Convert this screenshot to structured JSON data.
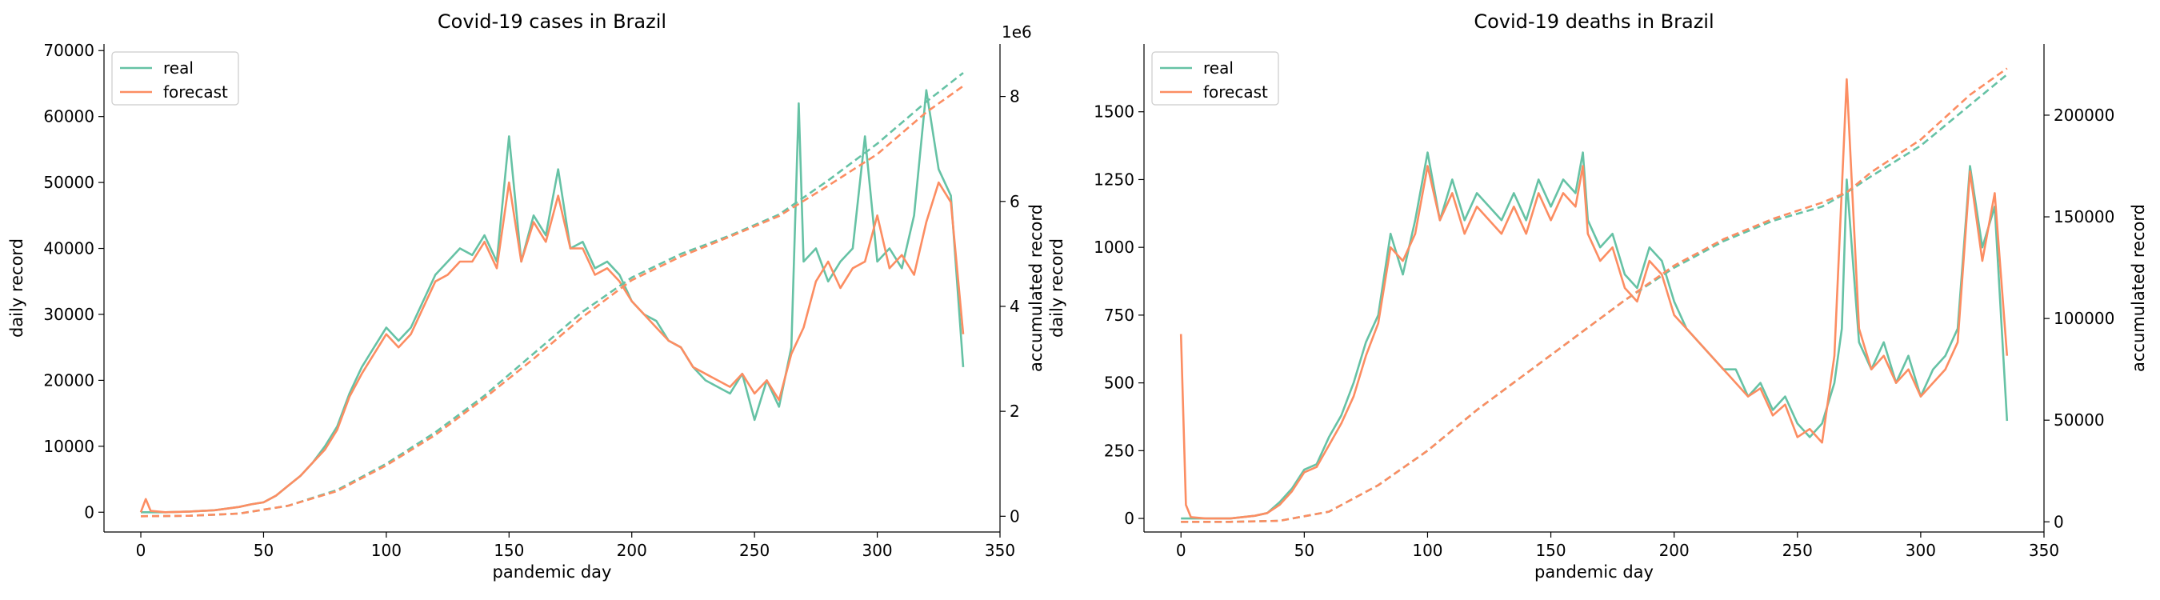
{
  "chart_data": [
    {
      "type": "line",
      "title": "Covid-19 cases in Brazil",
      "xlabel": "pandemic day",
      "ylabel": "daily record",
      "y2label": "accumulated record",
      "y2_offset_label": "1e6",
      "xlim": [
        -15,
        350
      ],
      "ylim": [
        -3000,
        71000
      ],
      "y2lim": [
        -0.3,
        9.0
      ],
      "xticks": [
        0,
        50,
        100,
        150,
        200,
        250,
        300,
        350
      ],
      "yticks": [
        0,
        10000,
        20000,
        30000,
        40000,
        50000,
        60000,
        70000
      ],
      "y2ticks": [
        0,
        2,
        4,
        6,
        8
      ],
      "legend": {
        "position": "upper-left",
        "entries": [
          "real",
          "forecast"
        ]
      },
      "grid": false,
      "colors": {
        "real": "#66c2a5",
        "forecast": "#fc8d62"
      },
      "series": [
        {
          "name": "real",
          "axis": "daily",
          "style": "solid",
          "x": [
            0,
            10,
            20,
            30,
            40,
            45,
            50,
            55,
            60,
            65,
            70,
            75,
            80,
            85,
            90,
            95,
            100,
            105,
            110,
            115,
            120,
            125,
            130,
            135,
            140,
            145,
            150,
            155,
            160,
            165,
            170,
            175,
            180,
            185,
            190,
            195,
            200,
            205,
            210,
            215,
            220,
            225,
            230,
            235,
            240,
            245,
            250,
            255,
            260,
            265,
            268,
            270,
            275,
            280,
            285,
            290,
            295,
            300,
            305,
            310,
            315,
            320,
            325,
            330,
            335
          ],
          "y": [
            0,
            0,
            100,
            300,
            800,
            1200,
            1500,
            2500,
            4000,
            5500,
            7500,
            10000,
            13000,
            18000,
            22000,
            25000,
            28000,
            26000,
            28000,
            32000,
            36000,
            38000,
            40000,
            39000,
            42000,
            38000,
            57000,
            38000,
            45000,
            42000,
            52000,
            40000,
            41000,
            37000,
            38000,
            36000,
            32000,
            30000,
            29000,
            26000,
            25000,
            22000,
            20000,
            19000,
            18000,
            21000,
            14000,
            20000,
            16000,
            25000,
            62000,
            38000,
            40000,
            35000,
            38000,
            40000,
            57000,
            38000,
            40000,
            37000,
            45000,
            64000,
            52000,
            48000,
            22000
          ]
        },
        {
          "name": "forecast",
          "axis": "daily",
          "style": "solid",
          "x": [
            0,
            2,
            4,
            10,
            20,
            30,
            40,
            45,
            50,
            55,
            60,
            65,
            70,
            75,
            80,
            85,
            90,
            95,
            100,
            105,
            110,
            115,
            120,
            125,
            130,
            135,
            140,
            145,
            150,
            155,
            160,
            165,
            170,
            175,
            180,
            185,
            190,
            195,
            200,
            205,
            210,
            215,
            220,
            225,
            230,
            235,
            240,
            245,
            250,
            255,
            260,
            265,
            270,
            275,
            280,
            285,
            290,
            295,
            300,
            305,
            310,
            315,
            320,
            325,
            330,
            335
          ],
          "y": [
            0,
            2000,
            200,
            0,
            100,
            300,
            800,
            1200,
            1500,
            2500,
            4000,
            5500,
            7500,
            9500,
            12500,
            17500,
            21000,
            24000,
            27000,
            25000,
            27000,
            31000,
            35000,
            36000,
            38000,
            38000,
            41000,
            37000,
            50000,
            38000,
            44000,
            41000,
            48000,
            40000,
            40000,
            36000,
            37000,
            35000,
            32000,
            30000,
            28000,
            26000,
            25000,
            22000,
            21000,
            20000,
            19000,
            21000,
            18000,
            20000,
            17000,
            24000,
            28000,
            35000,
            38000,
            34000,
            37000,
            38000,
            45000,
            37000,
            39000,
            36000,
            44000,
            50000,
            47000,
            27000
          ]
        },
        {
          "name": "real",
          "axis": "accumulated",
          "style": "dashed",
          "x": [
            0,
            20,
            40,
            60,
            80,
            100,
            120,
            140,
            160,
            180,
            200,
            220,
            240,
            260,
            280,
            300,
            320,
            335
          ],
          "y": [
            0,
            0.01,
            0.05,
            0.2,
            0.5,
            1.0,
            1.6,
            2.3,
            3.1,
            3.9,
            4.55,
            5.0,
            5.35,
            5.75,
            6.4,
            7.1,
            7.9,
            8.45
          ]
        },
        {
          "name": "forecast",
          "axis": "accumulated",
          "style": "dashed",
          "x": [
            0,
            20,
            40,
            60,
            80,
            100,
            120,
            140,
            160,
            180,
            200,
            220,
            240,
            260,
            280,
            300,
            320,
            335
          ],
          "y": [
            0,
            0.01,
            0.05,
            0.2,
            0.48,
            0.97,
            1.55,
            2.25,
            3.0,
            3.8,
            4.5,
            4.95,
            5.33,
            5.72,
            6.3,
            6.9,
            7.7,
            8.2
          ]
        }
      ]
    },
    {
      "type": "line",
      "title": "Covid-19 deaths in Brazil",
      "xlabel": "pandemic day",
      "ylabel": "daily record",
      "y2label": "accumulated record",
      "xlim": [
        -15,
        350
      ],
      "ylim": [
        -50,
        1750
      ],
      "y2lim": [
        -5000,
        235000
      ],
      "xticks": [
        0,
        50,
        100,
        150,
        200,
        250,
        300,
        350
      ],
      "yticks": [
        0,
        250,
        500,
        750,
        1000,
        1250,
        1500
      ],
      "y2ticks": [
        0,
        50000,
        100000,
        150000,
        200000
      ],
      "legend": {
        "position": "upper-left",
        "entries": [
          "real",
          "forecast"
        ]
      },
      "grid": false,
      "colors": {
        "real": "#66c2a5",
        "forecast": "#fc8d62"
      },
      "series": [
        {
          "name": "real",
          "axis": "daily",
          "style": "solid",
          "x": [
            0,
            10,
            20,
            30,
            35,
            40,
            45,
            50,
            55,
            60,
            65,
            70,
            75,
            80,
            85,
            90,
            95,
            100,
            105,
            110,
            115,
            120,
            125,
            130,
            135,
            140,
            145,
            150,
            155,
            160,
            163,
            165,
            170,
            175,
            180,
            185,
            190,
            195,
            200,
            205,
            210,
            215,
            220,
            225,
            230,
            235,
            240,
            245,
            250,
            255,
            260,
            265,
            268,
            270,
            275,
            280,
            285,
            290,
            295,
            300,
            305,
            310,
            315,
            320,
            325,
            330,
            335
          ],
          "y": [
            0,
            0,
            0,
            10,
            20,
            60,
            110,
            180,
            200,
            300,
            380,
            500,
            650,
            750,
            1050,
            900,
            1100,
            1350,
            1100,
            1250,
            1100,
            1200,
            1150,
            1100,
            1200,
            1100,
            1250,
            1150,
            1250,
            1200,
            1350,
            1100,
            1000,
            1050,
            900,
            850,
            1000,
            950,
            800,
            700,
            650,
            600,
            550,
            550,
            450,
            500,
            400,
            450,
            350,
            300,
            350,
            500,
            700,
            1250,
            650,
            550,
            650,
            500,
            600,
            450,
            550,
            600,
            700,
            1300,
            1000,
            1150,
            360
          ]
        },
        {
          "name": "forecast",
          "axis": "daily",
          "style": "solid",
          "x": [
            0,
            2,
            4,
            10,
            20,
            30,
            35,
            40,
            45,
            50,
            55,
            60,
            65,
            70,
            75,
            80,
            85,
            90,
            95,
            100,
            105,
            110,
            115,
            120,
            125,
            130,
            135,
            140,
            145,
            150,
            155,
            160,
            163,
            165,
            170,
            175,
            180,
            185,
            190,
            195,
            200,
            205,
            210,
            215,
            220,
            225,
            230,
            235,
            240,
            245,
            250,
            255,
            260,
            265,
            270,
            275,
            280,
            285,
            290,
            295,
            300,
            305,
            310,
            315,
            320,
            325,
            330,
            335
          ],
          "y": [
            680,
            50,
            5,
            0,
            0,
            10,
            20,
            50,
            100,
            170,
            190,
            270,
            350,
            450,
            600,
            720,
            1000,
            950,
            1050,
            1300,
            1100,
            1200,
            1050,
            1150,
            1100,
            1050,
            1150,
            1050,
            1200,
            1100,
            1200,
            1150,
            1300,
            1050,
            950,
            1000,
            850,
            800,
            950,
            900,
            750,
            700,
            650,
            600,
            550,
            500,
            450,
            480,
            380,
            420,
            300,
            330,
            280,
            600,
            1620,
            700,
            550,
            600,
            500,
            550,
            450,
            500,
            550,
            650,
            1280,
            950,
            1200,
            600
          ]
        },
        {
          "name": "real",
          "axis": "accumulated",
          "style": "dashed",
          "x": [
            0,
            20,
            40,
            60,
            80,
            100,
            120,
            140,
            160,
            180,
            200,
            220,
            240,
            260,
            270,
            280,
            300,
            320,
            335
          ],
          "y": [
            0,
            0,
            500,
            5000,
            18000,
            35000,
            55000,
            73000,
            91000,
            109000,
            125000,
            138000,
            148000,
            155000,
            162000,
            170000,
            185000,
            205000,
            220000
          ]
        },
        {
          "name": "forecast",
          "axis": "accumulated",
          "style": "dashed",
          "x": [
            0,
            20,
            40,
            60,
            80,
            100,
            120,
            140,
            160,
            180,
            200,
            220,
            240,
            260,
            270,
            280,
            300,
            320,
            335
          ],
          "y": [
            0,
            0,
            500,
            5000,
            18000,
            35000,
            55000,
            73000,
            91000,
            109000,
            126000,
            139000,
            149000,
            157000,
            162000,
            172000,
            188000,
            210000,
            223000
          ]
        }
      ]
    }
  ]
}
